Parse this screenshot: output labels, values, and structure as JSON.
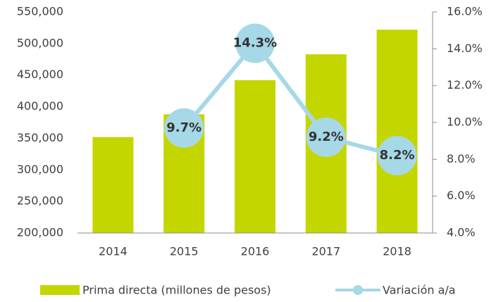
{
  "chart_data": {
    "type": "bar",
    "categories": [
      "2014",
      "2015",
      "2016",
      "2017",
      "2018"
    ],
    "series": [
      {
        "name": "Prima directa (millones de pesos)",
        "type": "bar",
        "color": "#c4d600",
        "values": [
          352000,
          388000,
          442000,
          483000,
          522000
        ]
      },
      {
        "name": "Variación a/a",
        "type": "line",
        "axis": "y2",
        "color": "#a6d8e7",
        "values": [
          null,
          9.7,
          14.3,
          9.2,
          8.2
        ],
        "value_labels": [
          null,
          "9.7%",
          "14.3%",
          "9.2%",
          "8.2%"
        ]
      }
    ],
    "ylim": [
      200000,
      550000
    ],
    "yticks": [
      {
        "value": 200000,
        "label": "200,000"
      },
      {
        "value": 250000,
        "label": "250,000"
      },
      {
        "value": 300000,
        "label": "300,000"
      },
      {
        "value": 350000,
        "label": "350,000"
      },
      {
        "value": 400000,
        "label": "400,000"
      },
      {
        "value": 450000,
        "label": "450,000"
      },
      {
        "value": 500000,
        "label": "500,000"
      },
      {
        "value": 550000,
        "label": "550,000"
      }
    ],
    "y2lim": [
      4,
      16
    ],
    "y2ticks": [
      {
        "value": 4,
        "label": "4.0%"
      },
      {
        "value": 6,
        "label": "6.0%"
      },
      {
        "value": 8,
        "label": "8.0%"
      },
      {
        "value": 10,
        "label": "10.0%"
      },
      {
        "value": 12,
        "label": "12.0%"
      },
      {
        "value": 14,
        "label": "14.0%"
      },
      {
        "value": 16,
        "label": "16.0%"
      }
    ],
    "legend": "bottom"
  }
}
